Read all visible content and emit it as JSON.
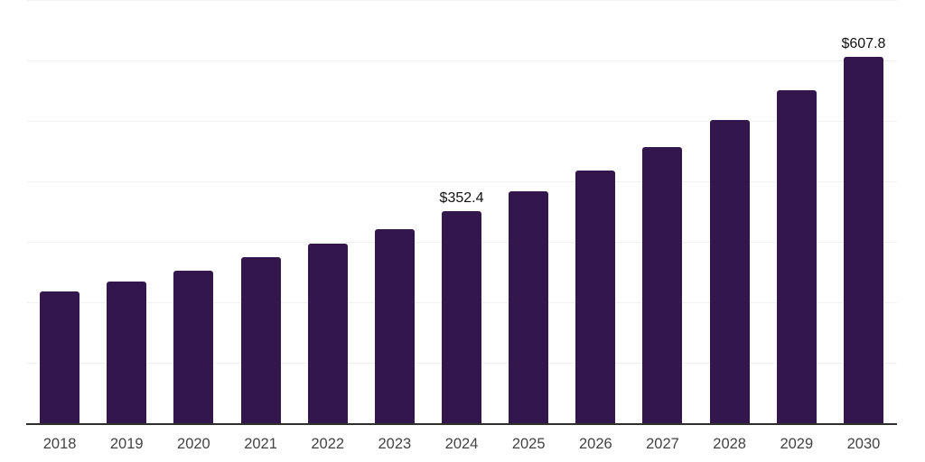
{
  "chart_data": {
    "type": "bar",
    "title": "",
    "xlabel": "",
    "ylabel": "",
    "categories": [
      "2018",
      "2019",
      "2020",
      "2021",
      "2022",
      "2023",
      "2024",
      "2025",
      "2026",
      "2027",
      "2028",
      "2029",
      "2030"
    ],
    "values": [
      220.0,
      235.9,
      254.5,
      276.5,
      298.5,
      322.5,
      352.4,
      384.9,
      419.7,
      459.0,
      503.8,
      552.0,
      607.8
    ],
    "data_labels": [
      "",
      "",
      "",
      "",
      "",
      "",
      "$352.4",
      "",
      "",
      "",
      "",
      "",
      "$607.8"
    ],
    "ylim": [
      0,
      700
    ],
    "gridline_step": 100,
    "grid": "horizontal",
    "legend": "none",
    "y_axis_tick_labels_visible": false,
    "colors": {
      "bar": "#32164c",
      "gridline": "#f1f1f1",
      "axis_line": "#2f2f2f",
      "tick_label": "#434343",
      "data_label": "#111111",
      "background": "#ffffff"
    }
  }
}
